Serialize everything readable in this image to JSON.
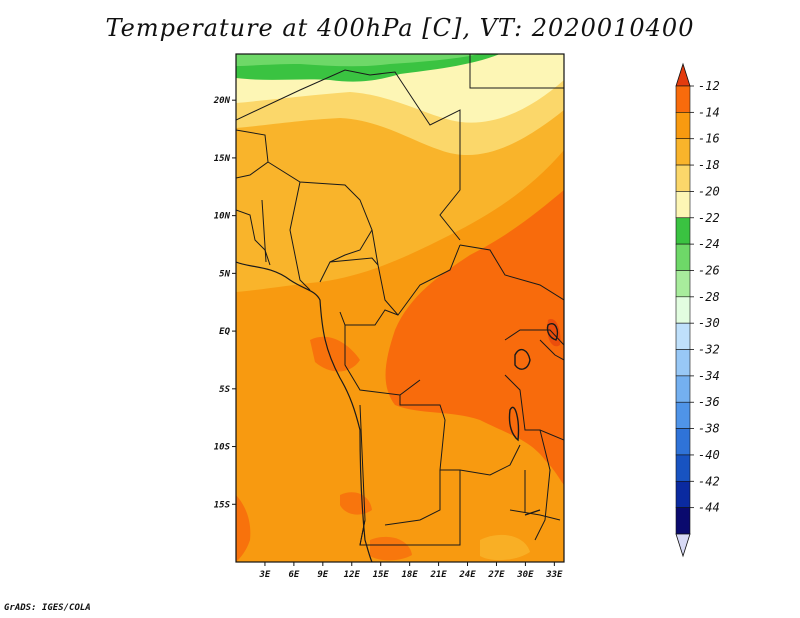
{
  "title": "Temperature at 400hPa [C], VT: 2020010400",
  "credit": "GrADS: IGES/COLA",
  "map": {
    "lon_range": [
      0,
      34
    ],
    "lat_range": [
      -20,
      24
    ],
    "lat_ticks": [
      {
        "value": 20,
        "label": "20N"
      },
      {
        "value": 15,
        "label": "15N"
      },
      {
        "value": 10,
        "label": "10N"
      },
      {
        "value": 5,
        "label": "5N"
      },
      {
        "value": 0,
        "label": "EQ"
      },
      {
        "value": -5,
        "label": "5S"
      },
      {
        "value": -10,
        "label": "10S"
      },
      {
        "value": -15,
        "label": "15S"
      }
    ],
    "lon_ticks": [
      {
        "value": 3,
        "label": "3E"
      },
      {
        "value": 6,
        "label": "6E"
      },
      {
        "value": 9,
        "label": "9E"
      },
      {
        "value": 12,
        "label": "12E"
      },
      {
        "value": 15,
        "label": "15E"
      },
      {
        "value": 18,
        "label": "18E"
      },
      {
        "value": 21,
        "label": "21E"
      },
      {
        "value": 24,
        "label": "24E"
      },
      {
        "value": 27,
        "label": "27E"
      },
      {
        "value": 30,
        "label": "30E"
      },
      {
        "value": 33,
        "label": "33E"
      }
    ]
  },
  "colorbar": {
    "labels": [
      "-12",
      "-14",
      "-16",
      "-18",
      "-20",
      "-22",
      "-24",
      "-26",
      "-28",
      "-30",
      "-32",
      "-34",
      "-36",
      "-38",
      "-40",
      "-42",
      "-44"
    ],
    "colors": [
      "#e33b0e",
      "#f86b0c",
      "#f89a10",
      "#f9b42b",
      "#fbd76a",
      "#fdf6b5",
      "#3ac341",
      "#6ed868",
      "#a8ec9c",
      "#e2fde0",
      "#bfe0fb",
      "#98c8f6",
      "#74b0f0",
      "#4f94e8",
      "#2f73d8",
      "#1853c1",
      "#0a2aa0",
      "#0a0a6e",
      "#d8daf6"
    ]
  },
  "chart_data": {
    "type": "heatmap",
    "title": "Temperature at 400hPa [C], VT: 2020010400",
    "units": "C",
    "x_range": [
      0,
      34
    ],
    "y_range": [
      -20,
      24
    ],
    "x_ticks": [
      "3E",
      "6E",
      "9E",
      "12E",
      "15E",
      "18E",
      "21E",
      "24E",
      "27E",
      "30E",
      "33E"
    ],
    "y_ticks": [
      "20N",
      "15N",
      "10N",
      "5N",
      "EQ",
      "5S",
      "10S",
      "15S"
    ],
    "colorbar_levels": [
      -12,
      -14,
      -16,
      -18,
      -20,
      -22,
      -24,
      -26,
      -28,
      -30,
      -32,
      -34,
      -36,
      -38,
      -40,
      -42,
      -44
    ],
    "regions": [
      {
        "area": "north edge ~23N, 0E-20E",
        "value_range": [
          -24,
          -22
        ]
      },
      {
        "area": "north Sahara 18N-24N",
        "value_range": [
          -22,
          -18
        ]
      },
      {
        "area": "Sahel 10N-17N",
        "value_range": [
          -18,
          -16
        ]
      },
      {
        "area": "Gulf of Guinea / Congo basin / southern Africa",
        "value_range": [
          -16,
          -14
        ]
      },
      {
        "area": "central Africa and east Africa 5S-12N, 15E-34E",
        "value_range": [
          -14,
          -12
        ]
      }
    ]
  }
}
